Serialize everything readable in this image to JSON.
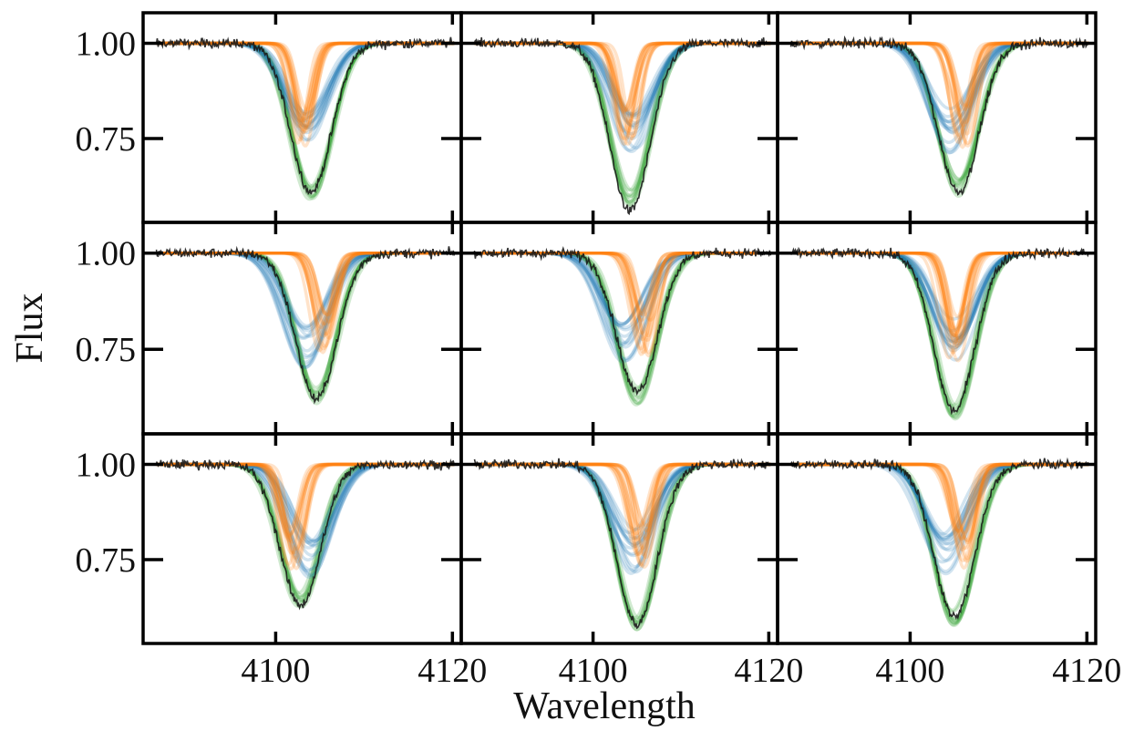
{
  "figure": {
    "xlabel": "Wavelength",
    "ylabel": "Flux"
  },
  "colors": {
    "observed": "#1a1a1a",
    "component_1": "#1f77b4",
    "component_2": "#ff7f0e",
    "combined": "#2ca02c",
    "axes": "#000000"
  },
  "chart_data": [
    {
      "type": "line",
      "panel": "row 1, col 1",
      "xlim": [
        4085,
        4121
      ],
      "ylim": [
        0.53,
        1.08
      ],
      "xticks": [
        4100,
        4120
      ],
      "yticks": [
        1.0,
        0.75
      ],
      "xlabel": "Wavelength",
      "ylabel": "Flux",
      "series": [
        {
          "role": "component_1",
          "center": 4103.5,
          "min_flux": 0.8
        },
        {
          "role": "component_2",
          "center": 4103.0,
          "min_flux": 0.81
        },
        {
          "role": "combined",
          "center": 4104.0,
          "min_flux": 0.61
        },
        {
          "role": "observed",
          "center": 4104.0,
          "min_flux": 0.61
        }
      ]
    },
    {
      "type": "line",
      "panel": "row 1, col 2",
      "xlim": [
        4085,
        4121
      ],
      "ylim": [
        0.53,
        1.08
      ],
      "xticks": [
        4100,
        4120
      ],
      "yticks": [
        1.0,
        0.75
      ],
      "xlabel": "Wavelength",
      "ylabel": "Flux",
      "series": [
        {
          "role": "component_1",
          "center": 4104.5,
          "min_flux": 0.8
        },
        {
          "role": "component_2",
          "center": 4104.0,
          "min_flux": 0.8
        },
        {
          "role": "combined",
          "center": 4104.2,
          "min_flux": 0.59
        },
        {
          "role": "observed",
          "center": 4104.2,
          "min_flux": 0.56
        }
      ]
    },
    {
      "type": "line",
      "panel": "row 1, col 3",
      "xlim": [
        4085,
        4121
      ],
      "ylim": [
        0.53,
        1.08
      ],
      "xticks": [
        4100,
        4120
      ],
      "yticks": [
        1.0,
        0.75
      ],
      "xlabel": "Wavelength",
      "ylabel": "Flux",
      "series": [
        {
          "role": "component_1",
          "center": 4104.5,
          "min_flux": 0.8
        },
        {
          "role": "component_2",
          "center": 4106.0,
          "min_flux": 0.8
        },
        {
          "role": "combined",
          "center": 4105.5,
          "min_flux": 0.62
        },
        {
          "role": "observed",
          "center": 4105.5,
          "min_flux": 0.61
        }
      ]
    },
    {
      "type": "line",
      "panel": "row 2, col 1",
      "xlim": [
        4085,
        4121
      ],
      "ylim": [
        0.53,
        1.08
      ],
      "xticks": [
        4100,
        4120
      ],
      "yticks": [
        1.0,
        0.75
      ],
      "xlabel": "Wavelength",
      "ylabel": "Flux",
      "series": [
        {
          "role": "component_1",
          "center": 4103.5,
          "min_flux": 0.79
        },
        {
          "role": "component_2",
          "center": 4105.5,
          "min_flux": 0.81
        },
        {
          "role": "combined",
          "center": 4104.6,
          "min_flux": 0.63
        },
        {
          "role": "observed",
          "center": 4104.6,
          "min_flux": 0.62
        }
      ]
    },
    {
      "type": "line",
      "panel": "row 2, col 2",
      "xlim": [
        4085,
        4121
      ],
      "ylim": [
        0.53,
        1.08
      ],
      "xticks": [
        4100,
        4120
      ],
      "yticks": [
        1.0,
        0.75
      ],
      "xlabel": "Wavelength",
      "ylabel": "Flux",
      "series": [
        {
          "role": "component_1",
          "center": 4103.5,
          "min_flux": 0.79
        },
        {
          "role": "component_2",
          "center": 4106.0,
          "min_flux": 0.81
        },
        {
          "role": "combined",
          "center": 4105.0,
          "min_flux": 0.63
        },
        {
          "role": "observed",
          "center": 4105.0,
          "min_flux": 0.64
        }
      ]
    },
    {
      "type": "line",
      "panel": "row 2, col 3",
      "xlim": [
        4085,
        4121
      ],
      "ylim": [
        0.53,
        1.08
      ],
      "xticks": [
        4100,
        4120
      ],
      "yticks": [
        1.0,
        0.75
      ],
      "xlabel": "Wavelength",
      "ylabel": "Flux",
      "series": [
        {
          "role": "component_1",
          "center": 4105.0,
          "min_flux": 0.8
        },
        {
          "role": "component_2",
          "center": 4105.0,
          "min_flux": 0.8
        },
        {
          "role": "combined",
          "center": 4105.0,
          "min_flux": 0.59
        },
        {
          "role": "observed",
          "center": 4105.0,
          "min_flux": 0.59
        }
      ]
    },
    {
      "type": "line",
      "panel": "row 3, col 1",
      "xlim": [
        4085,
        4121
      ],
      "ylim": [
        0.53,
        1.08
      ],
      "xticks": [
        4100,
        4120
      ],
      "yticks": [
        1.0,
        0.75
      ],
      "xlabel": "Wavelength",
      "ylabel": "Flux",
      "series": [
        {
          "role": "component_1",
          "center": 4104.0,
          "min_flux": 0.79
        },
        {
          "role": "component_2",
          "center": 4102.0,
          "min_flux": 0.8
        },
        {
          "role": "combined",
          "center": 4102.8,
          "min_flux": 0.64
        },
        {
          "role": "observed",
          "center": 4102.8,
          "min_flux": 0.63
        }
      ]
    },
    {
      "type": "line",
      "panel": "row 3, col 2",
      "xlim": [
        4085,
        4121
      ],
      "ylim": [
        0.53,
        1.08
      ],
      "xticks": [
        4100,
        4120
      ],
      "yticks": [
        1.0,
        0.75
      ],
      "xlabel": "Wavelength",
      "ylabel": "Flux",
      "series": [
        {
          "role": "component_1",
          "center": 4104.5,
          "min_flux": 0.8
        },
        {
          "role": "component_2",
          "center": 4105.5,
          "min_flux": 0.8
        },
        {
          "role": "combined",
          "center": 4105.0,
          "min_flux": 0.59
        },
        {
          "role": "observed",
          "center": 4105.0,
          "min_flux": 0.58
        }
      ]
    },
    {
      "type": "line",
      "panel": "row 3, col 3",
      "xlim": [
        4085,
        4121
      ],
      "ylim": [
        0.53,
        1.08
      ],
      "xticks": [
        4100,
        4120
      ],
      "yticks": [
        1.0,
        0.75
      ],
      "xlabel": "Wavelength",
      "ylabel": "Flux",
      "series": [
        {
          "role": "component_1",
          "center": 4104.0,
          "min_flux": 0.8
        },
        {
          "role": "component_2",
          "center": 4106.0,
          "min_flux": 0.8
        },
        {
          "role": "combined",
          "center": 4105.0,
          "min_flux": 0.6
        },
        {
          "role": "observed",
          "center": 4105.0,
          "min_flux": 0.6
        }
      ]
    }
  ]
}
